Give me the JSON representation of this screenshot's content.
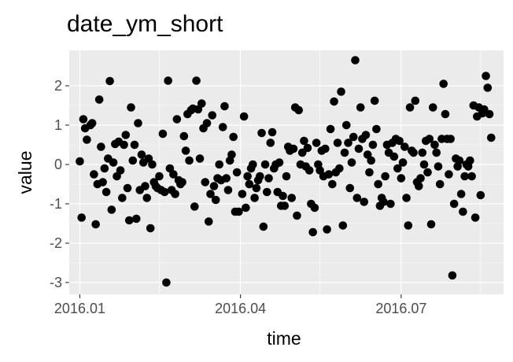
{
  "chart_data": {
    "type": "scatter",
    "title": "date_ym_short",
    "xlabel": "time",
    "ylabel": "value",
    "xlim": [
      "2015-12-26",
      "2016-08-28"
    ],
    "ylim": [
      -3.3,
      2.9
    ],
    "x_ticks": [
      {
        "date": "2016-01-01",
        "label": "2016.01"
      },
      {
        "date": "2016-04-01",
        "label": "2016.04"
      },
      {
        "date": "2016-07-01",
        "label": "2016.07"
      }
    ],
    "x_minor_ticks": [
      "2016-02-15",
      "2016-05-16",
      "2016-08-15"
    ],
    "y_ticks": [
      -3,
      -2,
      -1,
      0,
      1,
      2
    ],
    "y_tick_labels": [
      "-3",
      "-2",
      "-1",
      "0",
      "1",
      "2"
    ],
    "grid": true,
    "colors": {
      "panel": "#ebebeb",
      "grid": "#ffffff",
      "point": "#000000",
      "tick": "#333333"
    },
    "series": [
      {
        "points": [
          [
            "2016-01-01",
            0.08
          ],
          [
            "2016-01-02",
            -1.35
          ],
          [
            "2016-01-03",
            1.15
          ],
          [
            "2016-01-04",
            0.92
          ],
          [
            "2016-01-05",
            0.63
          ],
          [
            "2016-01-07",
            1.0
          ],
          [
            "2016-01-08",
            1.05
          ],
          [
            "2016-01-09",
            -0.25
          ],
          [
            "2016-01-10",
            -1.52
          ],
          [
            "2016-01-11",
            -0.5
          ],
          [
            "2016-01-12",
            1.65
          ],
          [
            "2016-01-13",
            0.45
          ],
          [
            "2016-01-14",
            -0.45
          ],
          [
            "2016-01-15",
            -0.1
          ],
          [
            "2016-01-16",
            -0.7
          ],
          [
            "2016-01-17",
            0.15
          ],
          [
            "2016-01-18",
            2.12
          ],
          [
            "2016-01-19",
            -1.15
          ],
          [
            "2016-01-20",
            0.05
          ],
          [
            "2016-01-21",
            0.52
          ],
          [
            "2016-01-22",
            -0.3
          ],
          [
            "2016-01-23",
            0.58
          ],
          [
            "2016-01-24",
            -0.15
          ],
          [
            "2016-01-25",
            -0.85
          ],
          [
            "2016-01-26",
            0.5
          ],
          [
            "2016-01-27",
            0.75
          ],
          [
            "2016-01-28",
            -0.6
          ],
          [
            "2016-01-29",
            -1.42
          ],
          [
            "2016-01-30",
            1.45
          ],
          [
            "2016-01-31",
            0.1
          ],
          [
            "2016-02-01",
            0.5
          ],
          [
            "2016-02-02",
            -1.38
          ],
          [
            "2016-02-03",
            1.05
          ],
          [
            "2016-02-04",
            -0.65
          ],
          [
            "2016-02-05",
            0.25
          ],
          [
            "2016-02-06",
            0.05
          ],
          [
            "2016-02-07",
            -0.55
          ],
          [
            "2016-02-08",
            -0.85
          ],
          [
            "2016-02-09",
            0.15
          ],
          [
            "2016-02-10",
            -1.62
          ],
          [
            "2016-02-11",
            0.0
          ],
          [
            "2016-02-12",
            -0.45
          ],
          [
            "2016-02-13",
            -0.55
          ],
          [
            "2016-02-14",
            -0.6
          ],
          [
            "2016-02-15",
            -0.3
          ],
          [
            "2016-02-16",
            -0.65
          ],
          [
            "2016-02-17",
            0.78
          ],
          [
            "2016-02-18",
            -0.7
          ],
          [
            "2016-02-19",
            -3.0
          ],
          [
            "2016-02-20",
            2.13
          ],
          [
            "2016-02-21",
            -0.1
          ],
          [
            "2016-02-22",
            -0.65
          ],
          [
            "2016-02-23",
            -0.25
          ],
          [
            "2016-02-24",
            -0.75
          ],
          [
            "2016-02-25",
            1.15
          ],
          [
            "2016-02-26",
            -0.4
          ],
          [
            "2016-02-27",
            -0.5
          ],
          [
            "2016-02-28",
            -0.45
          ],
          [
            "2016-02-29",
            0.72
          ],
          [
            "2016-03-01",
            0.35
          ],
          [
            "2016-03-02",
            1.28
          ],
          [
            "2016-03-03",
            0.1
          ],
          [
            "2016-03-04",
            1.38
          ],
          [
            "2016-03-05",
            1.42
          ],
          [
            "2016-03-06",
            -1.07
          ],
          [
            "2016-03-07",
            2.13
          ],
          [
            "2016-03-08",
            1.4
          ],
          [
            "2016-03-09",
            0.15
          ],
          [
            "2016-03-10",
            1.55
          ],
          [
            "2016-03-11",
            0.92
          ],
          [
            "2016-03-12",
            -0.45
          ],
          [
            "2016-03-13",
            1.05
          ],
          [
            "2016-03-14",
            -1.45
          ],
          [
            "2016-03-15",
            -0.75
          ],
          [
            "2016-03-16",
            1.25
          ],
          [
            "2016-03-17",
            -0.55
          ],
          [
            "2016-03-18",
            -0.9
          ],
          [
            "2016-03-19",
            -0.35
          ],
          [
            "2016-03-20",
            0.0
          ],
          [
            "2016-03-21",
            -0.4
          ],
          [
            "2016-03-22",
            0.95
          ],
          [
            "2016-03-23",
            1.48
          ],
          [
            "2016-03-24",
            -0.35
          ],
          [
            "2016-03-25",
            -0.65
          ],
          [
            "2016-03-26",
            0.1
          ],
          [
            "2016-03-27",
            0.25
          ],
          [
            "2016-03-28",
            0.7
          ],
          [
            "2016-03-29",
            -1.2
          ],
          [
            "2016-03-30",
            -0.2
          ],
          [
            "2016-03-31",
            -1.2
          ],
          [
            "2016-04-02",
            -0.75
          ],
          [
            "2016-04-03",
            1.22
          ],
          [
            "2016-04-04",
            -1.1
          ],
          [
            "2016-04-05",
            -0.3
          ],
          [
            "2016-04-06",
            -0.5
          ],
          [
            "2016-04-07",
            -0.1
          ],
          [
            "2016-04-08",
            0.0
          ],
          [
            "2016-04-09",
            -0.85
          ],
          [
            "2016-04-10",
            -0.6
          ],
          [
            "2016-04-11",
            -0.4
          ],
          [
            "2016-04-12",
            -0.3
          ],
          [
            "2016-04-13",
            0.8
          ],
          [
            "2016-04-14",
            -1.58
          ],
          [
            "2016-04-15",
            0.0
          ],
          [
            "2016-04-16",
            -0.7
          ],
          [
            "2016-04-17",
            -0.35
          ],
          [
            "2016-04-18",
            0.55
          ],
          [
            "2016-04-19",
            0.82
          ],
          [
            "2016-04-20",
            -0.1
          ],
          [
            "2016-04-21",
            0.0
          ],
          [
            "2016-04-22",
            -0.7
          ],
          [
            "2016-04-23",
            0.05
          ],
          [
            "2016-04-24",
            -1.05
          ],
          [
            "2016-04-25",
            -0.8
          ],
          [
            "2016-04-26",
            -1.05
          ],
          [
            "2016-04-27",
            -0.3
          ],
          [
            "2016-04-28",
            0.45
          ],
          [
            "2016-04-29",
            0.35
          ],
          [
            "2016-04-30",
            -0.85
          ],
          [
            "2016-05-01",
            0.4
          ],
          [
            "2016-05-02",
            1.45
          ],
          [
            "2016-05-03",
            -1.3
          ],
          [
            "2016-05-04",
            1.38
          ],
          [
            "2016-05-05",
            0.0
          ],
          [
            "2016-05-06",
            0.3
          ],
          [
            "2016-05-07",
            0.6
          ],
          [
            "2016-05-08",
            -0.05
          ],
          [
            "2016-05-09",
            0.42
          ],
          [
            "2016-05-10",
            -0.15
          ],
          [
            "2016-05-11",
            -1.0
          ],
          [
            "2016-05-12",
            -1.72
          ],
          [
            "2016-05-13",
            -1.1
          ],
          [
            "2016-05-14",
            0.55
          ],
          [
            "2016-05-15",
            0.0
          ],
          [
            "2016-05-16",
            -0.15
          ],
          [
            "2016-05-17",
            0.35
          ],
          [
            "2016-05-18",
            -0.3
          ],
          [
            "2016-05-19",
            0.4
          ],
          [
            "2016-05-20",
            -1.65
          ],
          [
            "2016-05-21",
            -0.25
          ],
          [
            "2016-05-22",
            0.9
          ],
          [
            "2016-05-23",
            -0.5
          ],
          [
            "2016-05-24",
            1.6
          ],
          [
            "2016-05-25",
            -0.2
          ],
          [
            "2016-05-26",
            0.55
          ],
          [
            "2016-05-27",
            -0.1
          ],
          [
            "2016-05-28",
            1.85
          ],
          [
            "2016-05-29",
            -1.55
          ],
          [
            "2016-05-30",
            0.3
          ],
          [
            "2016-05-31",
            1.0
          ],
          [
            "2016-06-01",
            0.55
          ],
          [
            "2016-06-02",
            -0.6
          ],
          [
            "2016-06-03",
            0.05
          ],
          [
            "2016-06-04",
            0.7
          ],
          [
            "2016-06-05",
            2.65
          ],
          [
            "2016-06-06",
            -0.85
          ],
          [
            "2016-06-07",
            0.4
          ],
          [
            "2016-06-08",
            1.45
          ],
          [
            "2016-06-09",
            0.65
          ],
          [
            "2016-06-10",
            -0.95
          ],
          [
            "2016-06-11",
            0.75
          ],
          [
            "2016-06-12",
            0.25
          ],
          [
            "2016-06-13",
            -0.2
          ],
          [
            "2016-06-14",
            0.1
          ],
          [
            "2016-06-15",
            0.5
          ],
          [
            "2016-06-16",
            1.62
          ],
          [
            "2016-06-17",
            0.9
          ],
          [
            "2016-06-18",
            -0.5
          ],
          [
            "2016-06-19",
            -1.05
          ],
          [
            "2016-06-20",
            -0.85
          ],
          [
            "2016-06-21",
            -0.95
          ],
          [
            "2016-06-22",
            -0.3
          ],
          [
            "2016-06-23",
            0.5
          ],
          [
            "2016-06-24",
            0.3
          ],
          [
            "2016-06-25",
            -1.0
          ],
          [
            "2016-06-26",
            0.55
          ],
          [
            "2016-06-27",
            0.2
          ],
          [
            "2016-06-28",
            0.65
          ],
          [
            "2016-06-29",
            -0.1
          ],
          [
            "2016-06-30",
            0.6
          ],
          [
            "2016-07-01",
            -0.35
          ],
          [
            "2016-07-02",
            0.05
          ],
          [
            "2016-07-03",
            0.45
          ],
          [
            "2016-07-04",
            -0.85
          ],
          [
            "2016-07-05",
            -1.55
          ],
          [
            "2016-07-06",
            1.45
          ],
          [
            "2016-07-07",
            0.35
          ],
          [
            "2016-07-08",
            0.3
          ],
          [
            "2016-07-09",
            1.62
          ],
          [
            "2016-07-10",
            -0.45
          ],
          [
            "2016-07-11",
            -0.55
          ],
          [
            "2016-07-12",
            -0.35
          ],
          [
            "2016-07-13",
            0.3
          ],
          [
            "2016-07-14",
            0.0
          ],
          [
            "2016-07-15",
            0.6
          ],
          [
            "2016-07-16",
            -0.2
          ],
          [
            "2016-07-17",
            0.65
          ],
          [
            "2016-07-18",
            -1.52
          ],
          [
            "2016-07-19",
            1.45
          ],
          [
            "2016-07-20",
            0.5
          ],
          [
            "2016-07-21",
            0.3
          ],
          [
            "2016-07-22",
            -0.05
          ],
          [
            "2016-07-23",
            -0.5
          ],
          [
            "2016-07-24",
            0.65
          ],
          [
            "2016-07-25",
            2.05
          ],
          [
            "2016-07-26",
            1.28
          ],
          [
            "2016-07-27",
            0.65
          ],
          [
            "2016-07-28",
            -0.25
          ],
          [
            "2016-07-29",
            0.65
          ],
          [
            "2016-07-30",
            -2.82
          ],
          [
            "2016-07-31",
            -1.0
          ],
          [
            "2016-08-01",
            0.15
          ],
          [
            "2016-08-02",
            -0.05
          ],
          [
            "2016-08-03",
            0.1
          ],
          [
            "2016-08-04",
            -0.75
          ],
          [
            "2016-08-05",
            -1.2
          ],
          [
            "2016-08-06",
            -0.3
          ],
          [
            "2016-08-07",
            0.0
          ],
          [
            "2016-08-08",
            -0.05
          ],
          [
            "2016-08-09",
            0.1
          ],
          [
            "2016-08-10",
            -0.3
          ],
          [
            "2016-08-11",
            1.5
          ],
          [
            "2016-08-12",
            -1.35
          ],
          [
            "2016-08-13",
            1.22
          ],
          [
            "2016-08-14",
            1.45
          ],
          [
            "2016-08-15",
            -0.78
          ],
          [
            "2016-08-16",
            1.3
          ],
          [
            "2016-08-17",
            1.4
          ],
          [
            "2016-08-18",
            2.25
          ],
          [
            "2016-08-19",
            1.95
          ],
          [
            "2016-08-20",
            1.28
          ],
          [
            "2016-08-21",
            0.68
          ]
        ]
      }
    ]
  }
}
